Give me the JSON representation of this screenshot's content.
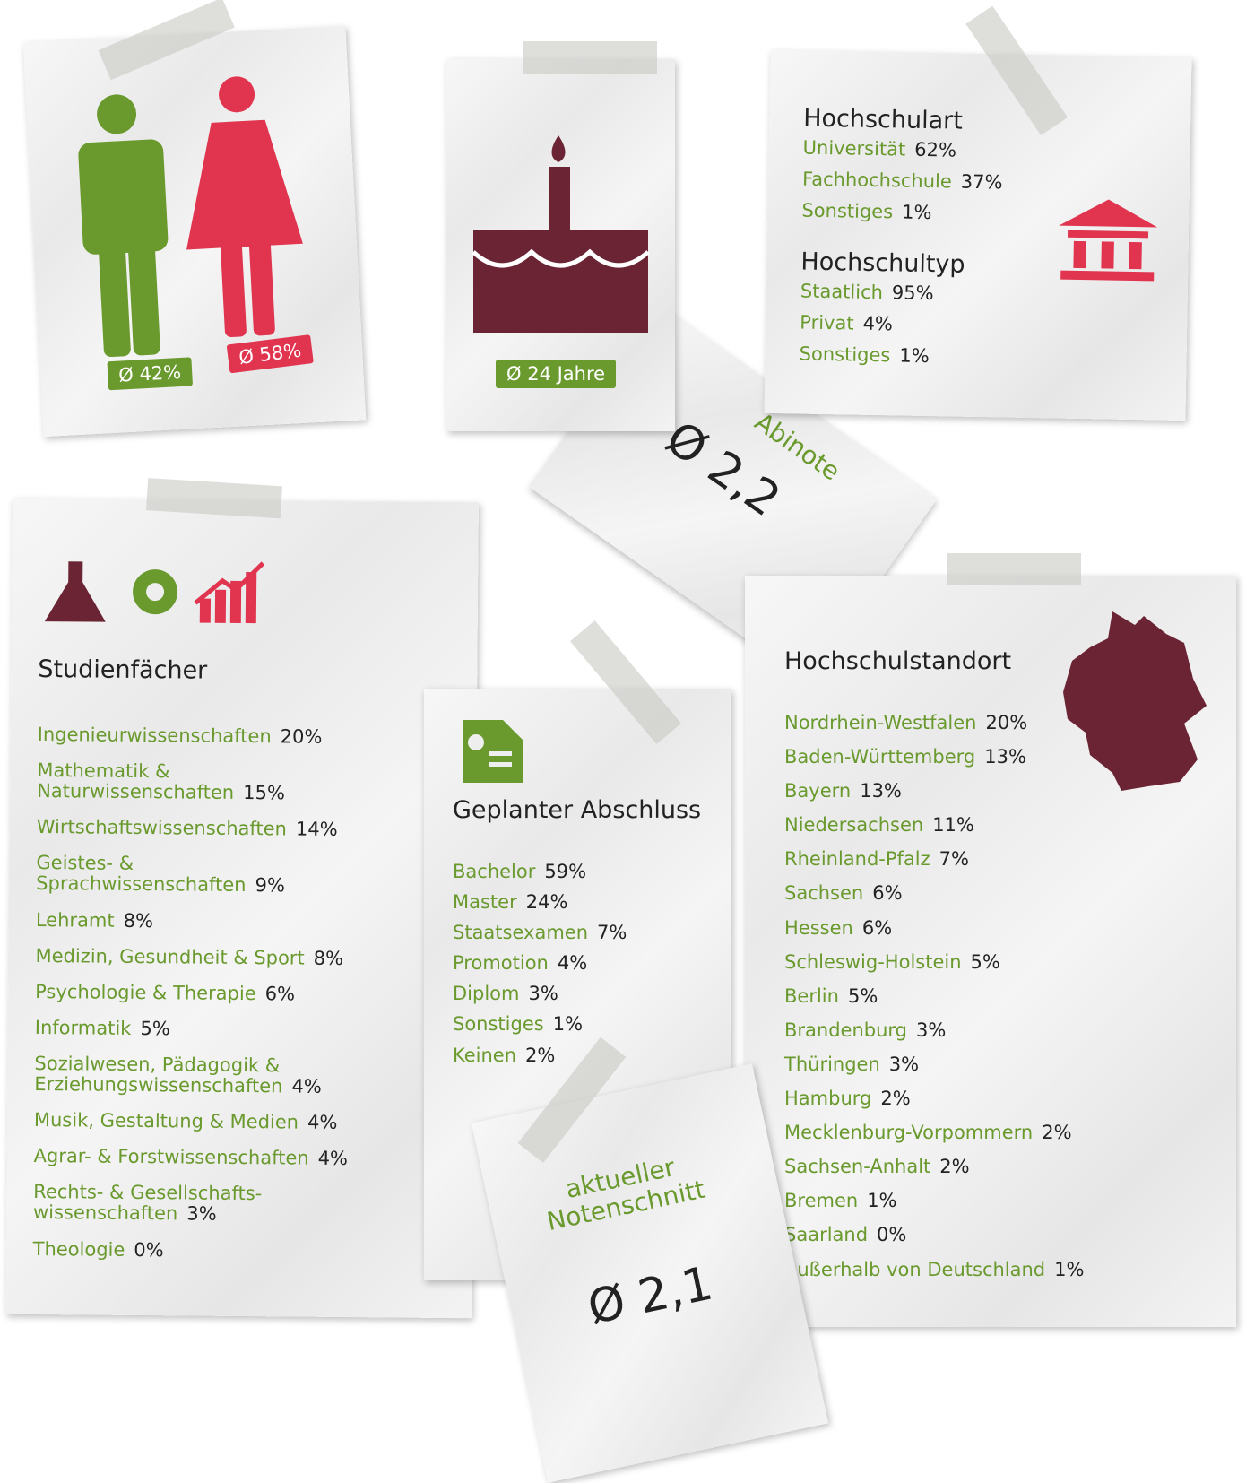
{
  "gender": {
    "male": "Ø 42%",
    "female": "Ø 58%"
  },
  "age": {
    "badge": "Ø 24 Jahre"
  },
  "hochschulart": {
    "title": "Hochschulart",
    "items": [
      {
        "label": "Universität",
        "value": "62%"
      },
      {
        "label": "Fachhochschule",
        "value": "37%"
      },
      {
        "label": "Sonstiges",
        "value": "1%"
      }
    ]
  },
  "hochschultyp": {
    "title": "Hochschultyp",
    "items": [
      {
        "label": "Staatlich",
        "value": "95%"
      },
      {
        "label": "Privat",
        "value": "4%"
      },
      {
        "label": "Sonstiges",
        "value": "1%"
      }
    ]
  },
  "abinote": {
    "label": "Abinote",
    "value": "Ø 2,2"
  },
  "studienfaecher": {
    "title": "Studienfächer",
    "items": [
      {
        "label": "Ingenieurwissenschaften",
        "value": "20%"
      },
      {
        "label": "Mathematik &\nNaturwissenschaften",
        "value": "15%"
      },
      {
        "label": "Wirtschaftswissenschaften",
        "value": "14%"
      },
      {
        "label": "Geistes- &\nSprachwissenschaften",
        "value": "9%"
      },
      {
        "label": "Lehramt",
        "value": "8%"
      },
      {
        "label": "Medizin, Gesundheit & Sport",
        "value": "8%"
      },
      {
        "label": "Psychologie & Therapie",
        "value": "6%"
      },
      {
        "label": "Informatik",
        "value": "5%"
      },
      {
        "label": "Sozialwesen, Pädagogik &\nErziehungswissenschaften",
        "value": "4%"
      },
      {
        "label": "Musik, Gestaltung & Medien",
        "value": "4%"
      },
      {
        "label": "Agrar- & Forstwissenschaften",
        "value": "4%"
      },
      {
        "label": "Rechts- & Gesellschafts-\nwissenschaften",
        "value": "3%"
      },
      {
        "label": "Theologie",
        "value": "0%"
      }
    ]
  },
  "abschluss": {
    "title": "Geplanter Abschluss",
    "items": [
      {
        "label": "Bachelor",
        "value": "59%"
      },
      {
        "label": "Master",
        "value": "24%"
      },
      {
        "label": "Staatsexamen",
        "value": "7%"
      },
      {
        "label": "Promotion",
        "value": "4%"
      },
      {
        "label": "Diplom",
        "value": "3%"
      },
      {
        "label": "Sonstiges",
        "value": "1%"
      },
      {
        "label": "Keinen",
        "value": "2%"
      }
    ]
  },
  "notenschnitt": {
    "label": "aktueller\nNotenschnitt",
    "value": "Ø 2,1"
  },
  "standort": {
    "title": "Hochschulstandort",
    "items": [
      {
        "label": "Nordrhein-Westfalen",
        "value": "20%"
      },
      {
        "label": "Baden-Württemberg",
        "value": "13%"
      },
      {
        "label": "Bayern",
        "value": "13%"
      },
      {
        "label": "Niedersachsen",
        "value": "11%"
      },
      {
        "label": "Rheinland-Pfalz",
        "value": "7%"
      },
      {
        "label": "Sachsen",
        "value": "6%"
      },
      {
        "label": "Hessen",
        "value": "6%"
      },
      {
        "label": "Schleswig-Holstein",
        "value": "5%"
      },
      {
        "label": "Berlin",
        "value": "5%"
      },
      {
        "label": "Brandenburg",
        "value": "3%"
      },
      {
        "label": "Thüringen",
        "value": "3%"
      },
      {
        "label": "Hamburg",
        "value": "2%"
      },
      {
        "label": "Mecklenburg-Vorpommern",
        "value": "2%"
      },
      {
        "label": "Sachsen-Anhalt",
        "value": "2%"
      },
      {
        "label": "Bremen",
        "value": "1%"
      },
      {
        "label": "Saarland",
        "value": "0%"
      },
      {
        "label": "Außerhalb von Deutschland",
        "value": "1%"
      }
    ]
  }
}
